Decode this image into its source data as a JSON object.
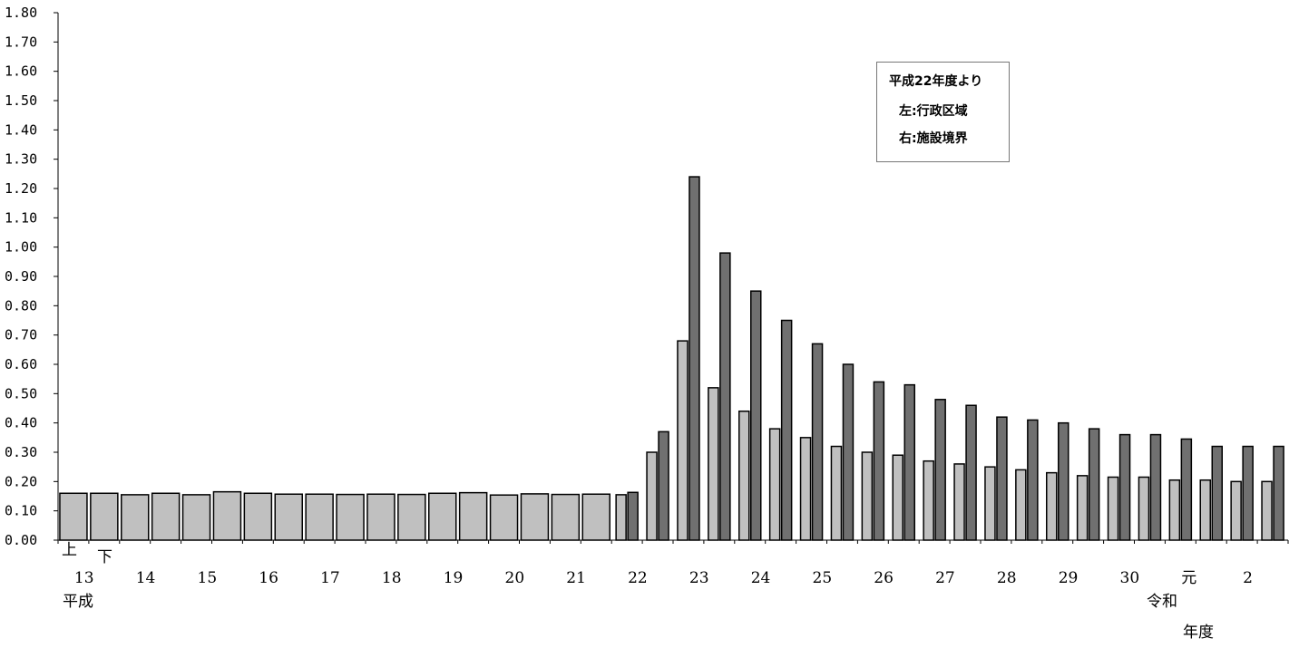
{
  "chart_data": {
    "type": "bar",
    "ylim": [
      0,
      1.8
    ],
    "y_ticks": [
      "0.00",
      "0.10",
      "0.20",
      "0.30",
      "0.40",
      "0.50",
      "0.60",
      "0.70",
      "0.80",
      "0.90",
      "1.00",
      "1.10",
      "1.20",
      "1.30",
      "1.40",
      "1.50",
      "1.60",
      "1.70",
      "1.80"
    ],
    "half_labels": [
      "上",
      "下"
    ],
    "x_labels": [
      "13",
      "14",
      "15",
      "16",
      "17",
      "18",
      "19",
      "20",
      "21",
      "22",
      "23",
      "24",
      "25",
      "26",
      "27",
      "28",
      "29",
      "30",
      "元",
      "2"
    ],
    "era_labels": [
      "平成",
      "令和"
    ],
    "unit_label": "年度",
    "legend_note": {
      "line1": "平成22年度より",
      "line2": "左:行政区域",
      "line3": "右:施設境界"
    },
    "colors": {
      "left_bar": "#c0c0c0",
      "right_bar": "#707070"
    },
    "series_single": [
      0.16,
      0.16,
      0.155,
      0.16,
      0.155,
      0.165,
      0.16,
      0.157,
      0.157,
      0.156,
      0.157,
      0.156,
      0.16,
      0.162,
      0.154,
      0.158,
      0.156,
      0.157
    ],
    "series_pairs": [
      [
        0.155,
        0.163
      ],
      [
        0.3,
        0.37
      ],
      [
        0.68,
        1.24
      ],
      [
        0.52,
        0.98
      ],
      [
        0.44,
        0.85
      ],
      [
        0.38,
        0.75
      ],
      [
        0.35,
        0.67
      ],
      [
        0.32,
        0.6
      ],
      [
        0.3,
        0.54
      ],
      [
        0.29,
        0.53
      ],
      [
        0.27,
        0.48
      ],
      [
        0.26,
        0.46
      ],
      [
        0.25,
        0.42
      ],
      [
        0.24,
        0.41
      ],
      [
        0.23,
        0.4
      ],
      [
        0.22,
        0.38
      ],
      [
        0.215,
        0.36
      ],
      [
        0.215,
        0.36
      ],
      [
        0.205,
        0.345
      ],
      [
        0.205,
        0.32
      ],
      [
        0.2,
        0.32
      ],
      [
        0.2,
        0.32
      ]
    ]
  }
}
